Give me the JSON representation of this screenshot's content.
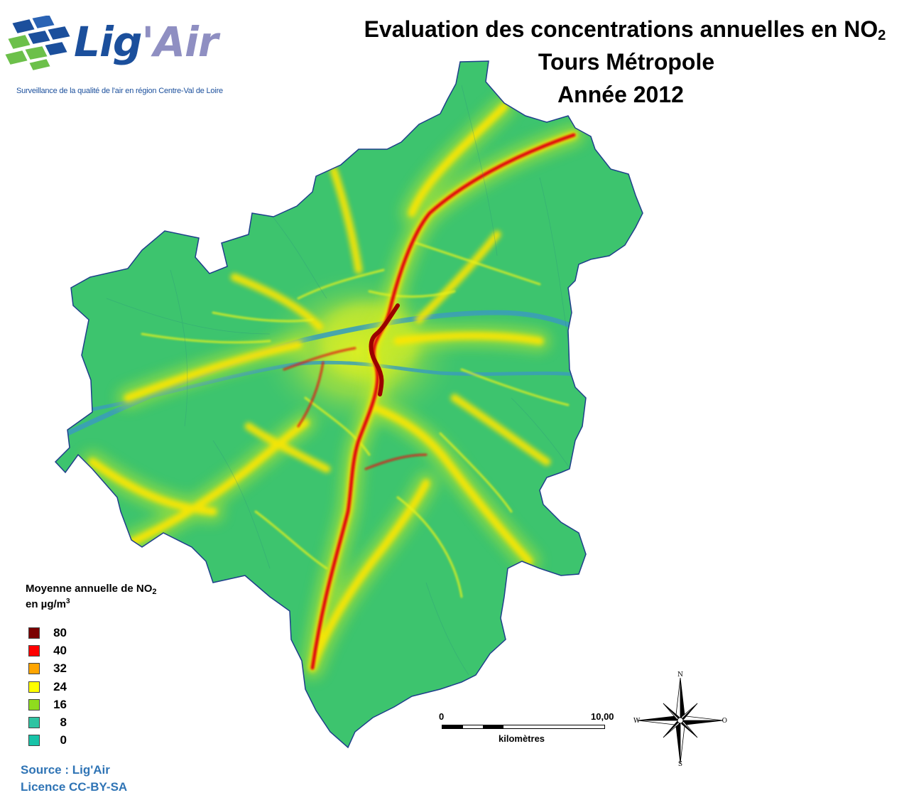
{
  "logo": {
    "name_main": "Lig",
    "name_accent": "'Air",
    "tagline": "Surveillance de la qualité de l'air en région Centre-Val de Loire",
    "colors": {
      "blue": "#1b4f9c",
      "green": "#6cc04a",
      "violet": "#8f8fc2"
    }
  },
  "title": {
    "line1_text": "Evaluation des concentrations annuelles en NO",
    "line1_sub": "2",
    "line2": "Tours Métropole",
    "line3": "Année 2012"
  },
  "legend": {
    "title_line1": "Moyenne annuelle de NO",
    "title_sub": "2",
    "title_line2": "en µg/m",
    "title_sup": "3",
    "items": [
      {
        "label": "80",
        "color": "#7b0000"
      },
      {
        "label": "40",
        "color": "#ff0000"
      },
      {
        "label": "32",
        "color": "#ffa500"
      },
      {
        "label": "24",
        "color": "#ffff00"
      },
      {
        "label": "16",
        "color": "#8fdc1e"
      },
      {
        "label": "8",
        "color": "#2fc4a2"
      },
      {
        "label": "0",
        "color": "#18c3a8"
      }
    ]
  },
  "source": {
    "line1": "Source : Lig'Air",
    "line2": "Licence CC-BY-SA"
  },
  "scale": {
    "start": "0",
    "end": "10,00",
    "unit": "kilomètres"
  },
  "compass": {
    "n": "N",
    "s": "S",
    "w": "W",
    "e": "O"
  },
  "map_colors": {
    "background": "#3dc46e",
    "river": "#3a9fb8",
    "boundary": "#1e3f8a",
    "road_low": "#d6ef1c",
    "road_mid": "#ffd500",
    "road_high": "#e01010",
    "road_peak": "#9a0000"
  }
}
